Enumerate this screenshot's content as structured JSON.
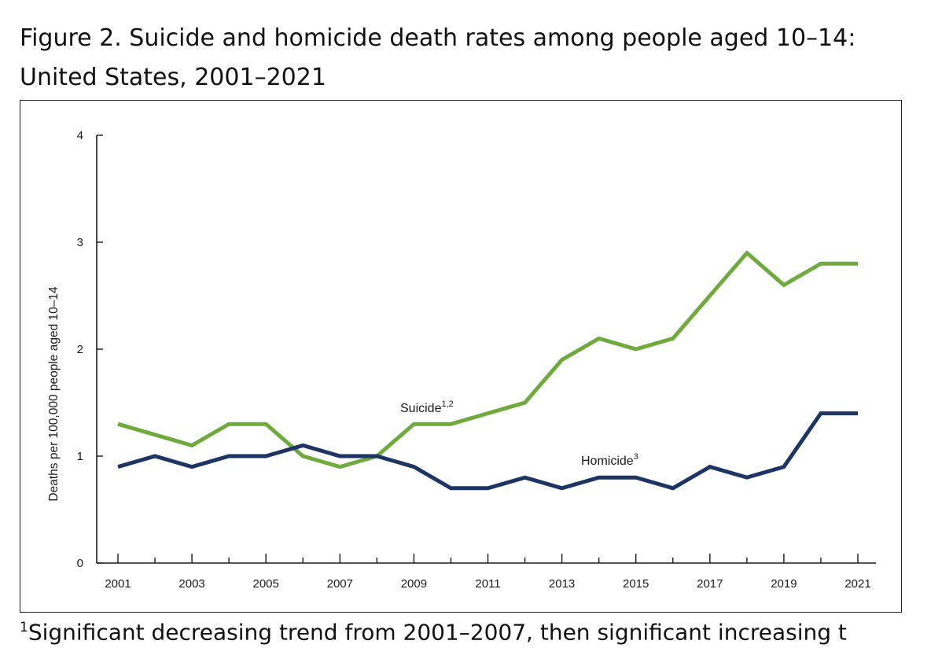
{
  "title_line1": "Figure 2. Suicide and homicide death rates among people aged 10–14:",
  "title_line2": "United States, 2001–2021",
  "footnote": {
    "marker": "1",
    "text": "Significant decreasing trend from 2001–2007, then significant increasing t"
  },
  "colors": {
    "suicide": "#6fab3c",
    "homicide": "#1c3564",
    "axis": "#1a1a1a"
  },
  "chart_data": {
    "type": "line",
    "title": "",
    "xlabel": "",
    "ylabel": "Deaths per 100,000 people aged 10–14",
    "ylim": [
      0,
      4
    ],
    "yticks": [
      "0",
      "1",
      "2",
      "3",
      "4"
    ],
    "x": [
      2001,
      2002,
      2003,
      2004,
      2005,
      2006,
      2007,
      2008,
      2009,
      2010,
      2011,
      2012,
      2013,
      2014,
      2015,
      2016,
      2017,
      2018,
      2019,
      2020,
      2021
    ],
    "xtick_labels": [
      "2001",
      "2003",
      "2005",
      "2007",
      "2009",
      "2011",
      "2013",
      "2015",
      "2017",
      "2019",
      "2021"
    ],
    "grid": false,
    "series": [
      {
        "key": "suicide",
        "name": "Suicide",
        "label_sup": "1,2",
        "values": [
          1.3,
          1.2,
          1.1,
          1.3,
          1.3,
          1.0,
          0.9,
          1.0,
          1.3,
          1.3,
          1.4,
          1.5,
          1.9,
          2.1,
          2.0,
          2.1,
          2.5,
          2.9,
          2.6,
          2.8,
          2.8
        ]
      },
      {
        "key": "homicide",
        "name": "Homicide",
        "label_sup": "3",
        "values": [
          0.9,
          1.0,
          0.9,
          1.0,
          1.0,
          1.1,
          1.0,
          1.0,
          0.9,
          0.7,
          0.7,
          0.8,
          0.7,
          0.8,
          0.8,
          0.7,
          0.9,
          0.8,
          0.9,
          1.4,
          1.4
        ]
      }
    ]
  }
}
